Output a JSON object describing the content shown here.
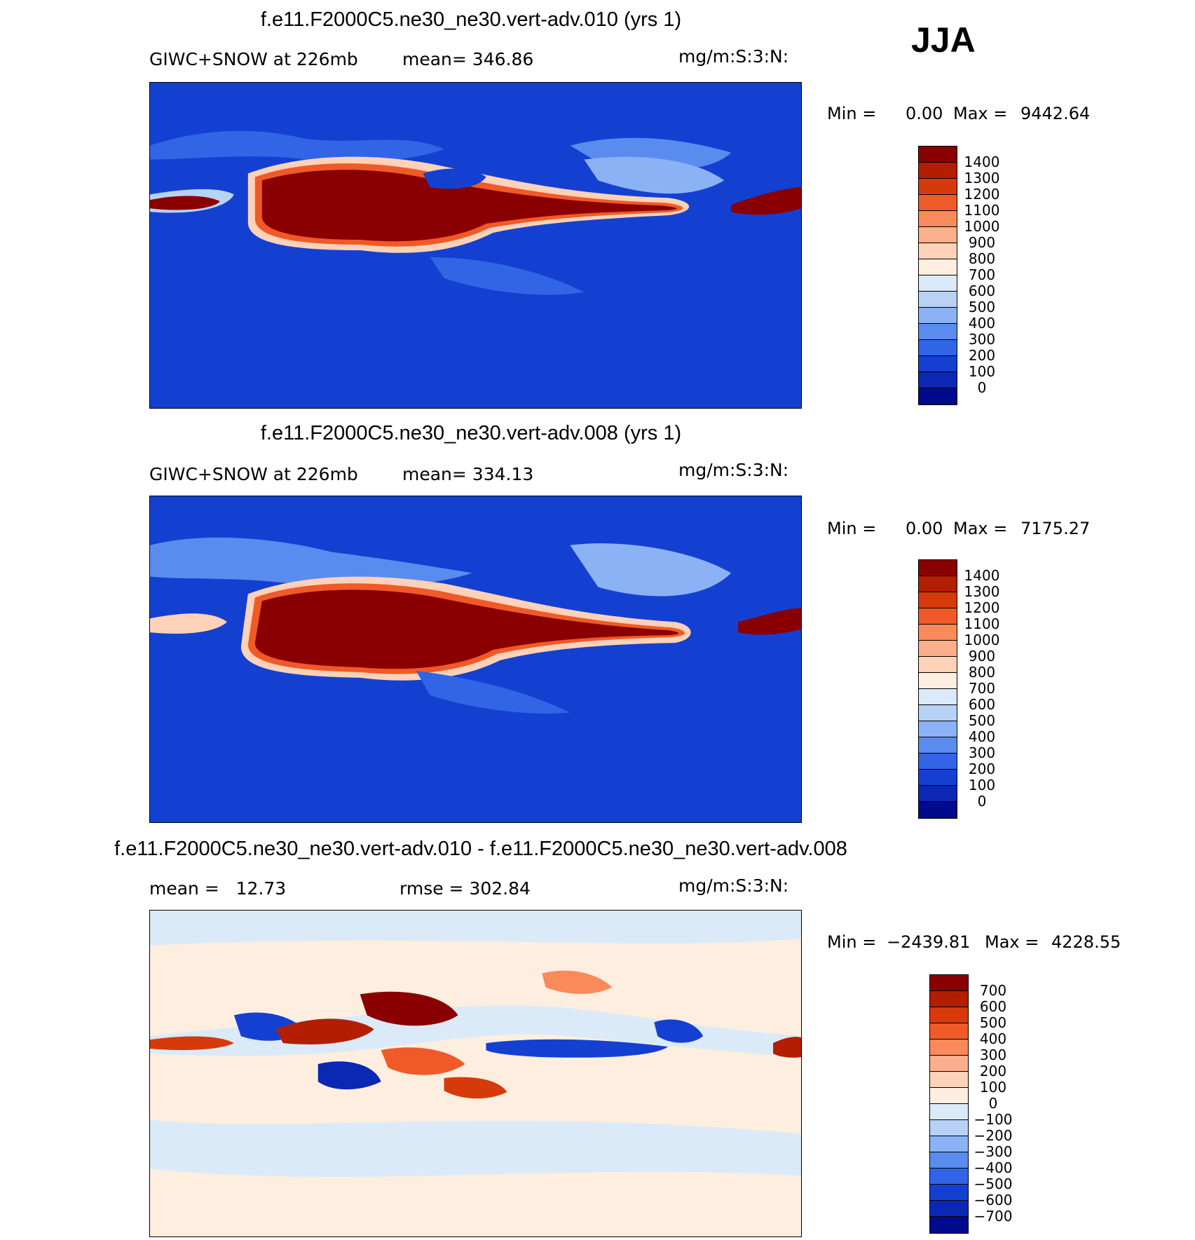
{
  "season": "JJA",
  "panels": [
    {
      "title": "f.e11.F2000C5.ne30_ne30.vert-adv.010 (yrs 1)",
      "subtitle_left": "GIWC+SNOW at 226mb",
      "subtitle_mid": "mean= 346.86",
      "units": "mg/m:S:3:N:",
      "min_label": "Min =",
      "min_value": "0.00",
      "max_label": "Max =",
      "max_value": "9442.64"
    },
    {
      "title": "f.e11.F2000C5.ne30_ne30.vert-adv.008 (yrs 1)",
      "subtitle_left": "GIWC+SNOW at 226mb",
      "subtitle_mid": "mean= 334.13",
      "units": "mg/m:S:3:N:",
      "min_label": "Min =",
      "min_value": "0.00",
      "max_label": "Max =",
      "max_value": "7175.27"
    },
    {
      "title": "f.e11.F2000C5.ne30_ne30.vert-adv.010 - f.e11.F2000C5.ne30_ne30.vert-adv.008",
      "subtitle_left": "mean =   12.73",
      "subtitle_mid": "rmse = 302.84",
      "units": "mg/m:S:3:N:",
      "min_label": "Min =",
      "min_value": "−2439.81",
      "max_label": "Max =",
      "max_value": "4228.55"
    }
  ],
  "chart_data": [
    {
      "type": "heatmap",
      "title": "f.e11.F2000C5.ne30_ne30.vert-adv.010 (yrs 1)",
      "variable": "GIWC+SNOW at 226mb",
      "units": "mg/m:S:3:N:",
      "mean": 346.86,
      "min": 0.0,
      "max": 9442.64,
      "levels": [
        "1400",
        "1300",
        "1200",
        "1100",
        "1000",
        "900",
        "800",
        "700",
        "600",
        "500",
        "400",
        "300",
        "200",
        "100",
        "0"
      ],
      "colors": [
        "#8a0000",
        "#b41e00",
        "#d73a0a",
        "#f05a28",
        "#fa8a5a",
        "#fcaf8c",
        "#fdd2b8",
        "#fdeee0",
        "#dbeaf8",
        "#b8d2f5",
        "#8ab2f5",
        "#5a8cf0",
        "#3264e6",
        "#1440d2",
        "#0a28b4",
        "#000a8c"
      ],
      "axes": "none (map projection, longitude 0-360, latitude -90-90)"
    },
    {
      "type": "heatmap",
      "title": "f.e11.F2000C5.ne30_ne30.vert-adv.008 (yrs 1)",
      "variable": "GIWC+SNOW at 226mb",
      "units": "mg/m:S:3:N:",
      "mean": 334.13,
      "min": 0.0,
      "max": 7175.27,
      "levels": [
        "1400",
        "1300",
        "1200",
        "1100",
        "1000",
        "900",
        "800",
        "700",
        "600",
        "500",
        "400",
        "300",
        "200",
        "100",
        "0"
      ],
      "colors": [
        "#8a0000",
        "#b41e00",
        "#d73a0a",
        "#f05a28",
        "#fa8a5a",
        "#fcaf8c",
        "#fdd2b8",
        "#fdeee0",
        "#dbeaf8",
        "#b8d2f5",
        "#8ab2f5",
        "#5a8cf0",
        "#3264e6",
        "#1440d2",
        "#0a28b4",
        "#000a8c"
      ],
      "axes": "none (map projection, longitude 0-360, latitude -90-90)"
    },
    {
      "type": "heatmap",
      "title": "f.e11.F2000C5.ne30_ne30.vert-adv.010 - f.e11.F2000C5.ne30_ne30.vert-adv.008",
      "units": "mg/m:S:3:N:",
      "mean": 12.73,
      "rmse": 302.84,
      "min": -2439.81,
      "max": 4228.55,
      "levels": [
        "700",
        "600",
        "500",
        "400",
        "300",
        "200",
        "100",
        "0",
        "−100",
        "−200",
        "−300",
        "−400",
        "−500",
        "−600",
        "−700"
      ],
      "colors": [
        "#8a0000",
        "#b41e00",
        "#d73a0a",
        "#f05a28",
        "#fa8a5a",
        "#fcaf8c",
        "#fdd2b8",
        "#fdeee0",
        "#dbeaf8",
        "#b8d2f5",
        "#8ab2f5",
        "#5a8cf0",
        "#3264e6",
        "#1440d2",
        "#0a28b4",
        "#000a8c"
      ],
      "axes": "none (map projection, longitude 0-360, latitude -90-90)"
    }
  ]
}
